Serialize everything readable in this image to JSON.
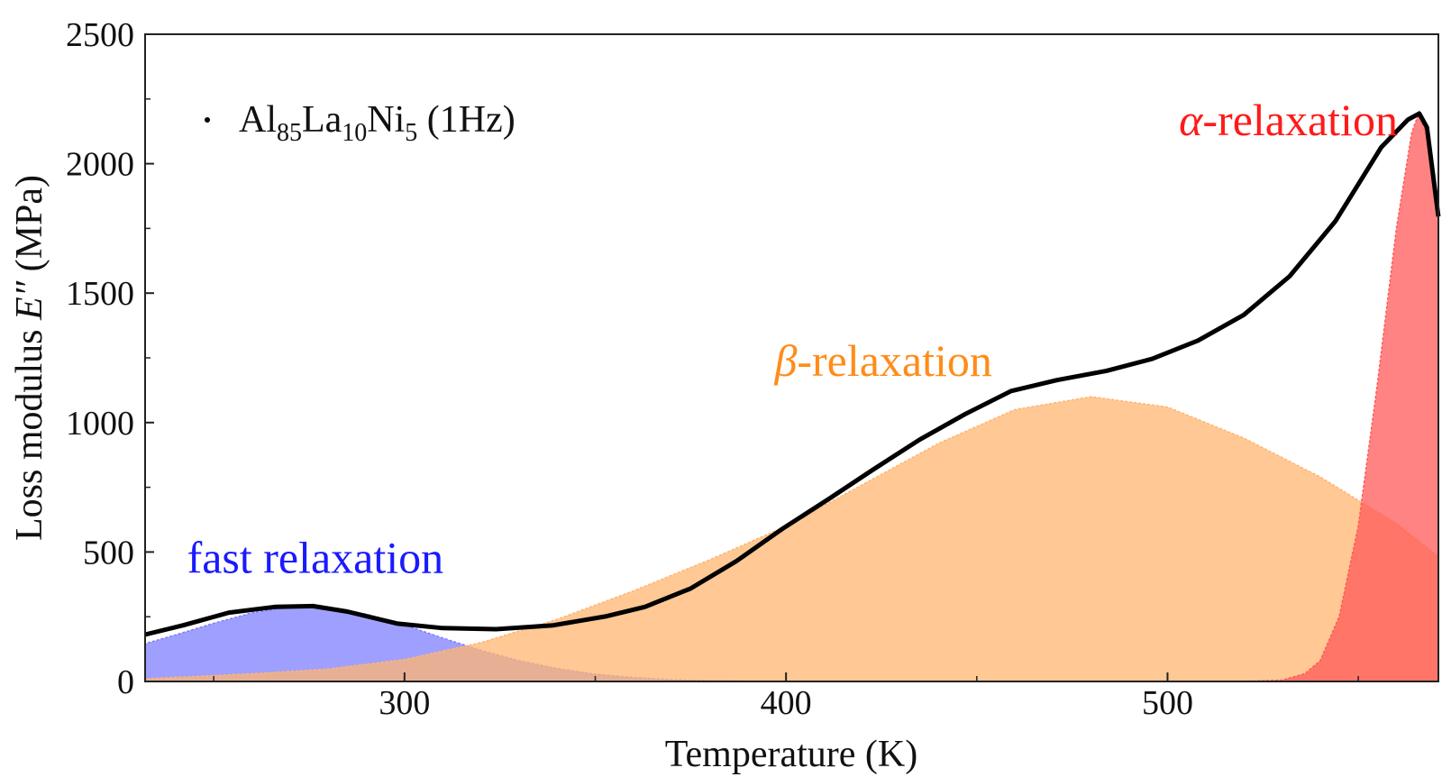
{
  "chart_data": {
    "type": "area",
    "xlabel": "Temperature (K)",
    "ylabel_parts": [
      "Loss modulus ",
      "E″",
      " (MPa)"
    ],
    "xlim": [
      232,
      571
    ],
    "ylim": [
      0,
      2500
    ],
    "xticks": [
      300,
      400,
      500
    ],
    "xminor": [
      250,
      350,
      450,
      550
    ],
    "yticks": [
      0,
      500,
      1000,
      1500,
      2000,
      2500
    ],
    "yminor": [
      250,
      750,
      1250,
      1750,
      2250
    ],
    "grid": false,
    "legend": {
      "placement": "top-left",
      "parts": [
        [
          "Al",
          ""
        ],
        [
          "85",
          "sub"
        ],
        [
          "La",
          ""
        ],
        [
          "10",
          "sub"
        ],
        [
          "Ni",
          ""
        ],
        [
          "5",
          "sub"
        ],
        [
          " (1Hz)",
          ""
        ]
      ]
    },
    "series": [
      {
        "name": "Al85La10Ni5 (1Hz)",
        "kind": "line",
        "color": "#000000",
        "x": [
          232,
          242,
          254,
          266,
          276,
          285,
          298,
          310,
          324,
          339,
          353,
          363,
          375,
          387,
          399,
          411,
          423,
          435,
          447,
          459,
          471,
          484,
          496,
          508,
          520,
          532,
          544,
          556,
          563,
          566,
          568,
          571
        ],
        "y": [
          181,
          217,
          266,
          288,
          291,
          270,
          224,
          206,
          202,
          217,
          252,
          288,
          359,
          465,
          589,
          703,
          820,
          934,
          1033,
          1122,
          1164,
          1200,
          1246,
          1317,
          1416,
          1565,
          1778,
          2063,
          2170,
          2194,
          2140,
          1796
        ]
      },
      {
        "kind": "area",
        "color": "#7f7fff",
        "x": [
          232,
          240,
          250,
          260,
          270,
          274,
          280,
          290,
          300,
          310,
          320,
          330,
          340,
          350,
          360,
          370,
          380,
          390,
          400
        ],
        "y": [
          146,
          180,
          225,
          265,
          288,
          292,
          285,
          260,
          218,
          168,
          120,
          80,
          50,
          28,
          15,
          7,
          3,
          1,
          0
        ]
      },
      {
        "kind": "area",
        "color": "#ffb570",
        "x": [
          232,
          260,
          280,
          300,
          320,
          340,
          360,
          380,
          400,
          420,
          440,
          460,
          480,
          500,
          520,
          540,
          560,
          571
        ],
        "y": [
          10,
          30,
          48,
          85,
          150,
          240,
          350,
          470,
          600,
          760,
          920,
          1050,
          1100,
          1060,
          940,
          790,
          610,
          483
        ]
      },
      {
        "kind": "area",
        "color": "#ff5a5a",
        "x": [
          520,
          530,
          536,
          540,
          545,
          550,
          555,
          560,
          564,
          566,
          568,
          571
        ],
        "y": [
          0,
          5,
          30,
          80,
          250,
          600,
          1150,
          1750,
          2120,
          2200,
          2100,
          1800
        ]
      }
    ],
    "annotations": [
      {
        "text": "fast relaxation",
        "color": "#1a1aff",
        "x": 243,
        "y": 420
      },
      {
        "text": "β-relaxation",
        "color": "#ff8c1a",
        "x": 397,
        "y": 1180
      },
      {
        "text": "α-relaxation",
        "color": "#ff1a1a",
        "x": 503,
        "y": 2110
      }
    ]
  }
}
